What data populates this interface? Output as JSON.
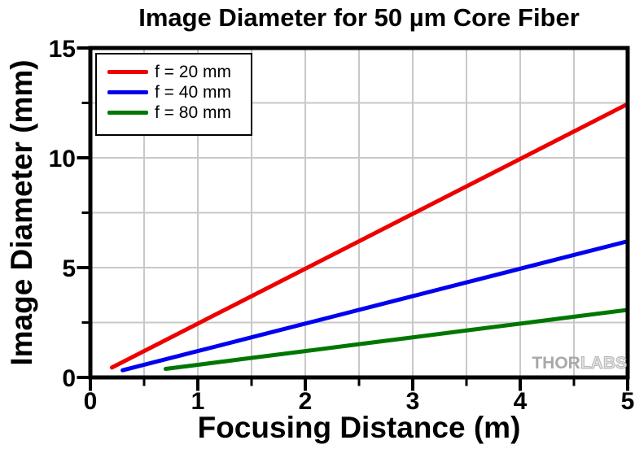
{
  "title": "Image Diameter for 50 µm Core Fiber",
  "watermark": {
    "part1": "THOR",
    "part2": "LABS"
  },
  "chart_data": {
    "type": "line",
    "title": "Image Diameter for 50 µm Core Fiber",
    "xlabel": "Focusing Distance (m)",
    "ylabel": "Image Diameter (mm)",
    "xlim": [
      0,
      5
    ],
    "ylim": [
      0,
      15
    ],
    "x_major_ticks": [
      0,
      1,
      2,
      3,
      4,
      5
    ],
    "x_minor_ticks": [
      0.5,
      1.5,
      2.5,
      3.5,
      4.5
    ],
    "y_major_ticks": [
      0,
      5,
      10,
      15
    ],
    "y_minor_ticks": [
      2.5,
      7.5,
      12.5
    ],
    "grid": {
      "x_lines": [
        0.5,
        1,
        1.5,
        2,
        2.5,
        3,
        3.5,
        4,
        4.5
      ],
      "y_lines": [
        2.5,
        5,
        7.5,
        10,
        12.5
      ],
      "color": "#c8c8c8"
    },
    "axis_color": "#000000",
    "background_color": "#ffffff",
    "legend_position": "top-left",
    "series": [
      {
        "name": "f = 20 mm",
        "color": "#ee0000",
        "x": [
          0.2,
          0.5,
          1,
          1.5,
          2,
          2.5,
          3,
          3.5,
          4,
          4.5,
          5
        ],
        "y": [
          0.45,
          1.2,
          2.45,
          3.7,
          4.95,
          6.2,
          7.45,
          8.7,
          9.95,
          11.2,
          12.45
        ]
      },
      {
        "name": "f = 40 mm",
        "color": "#0000ee",
        "x": [
          0.3,
          0.5,
          1,
          1.5,
          2,
          2.5,
          3,
          3.5,
          4,
          4.5,
          5
        ],
        "y": [
          0.325,
          0.575,
          1.2,
          1.825,
          2.45,
          3.075,
          3.7,
          4.325,
          4.95,
          5.575,
          6.2
        ]
      },
      {
        "name": "f = 80 mm",
        "color": "#007700",
        "x": [
          0.7,
          1,
          1.5,
          2,
          2.5,
          3,
          3.5,
          4,
          4.5,
          5
        ],
        "y": [
          0.3875,
          0.575,
          0.8875,
          1.2,
          1.5125,
          1.825,
          2.1375,
          2.45,
          2.7625,
          3.075
        ]
      }
    ]
  }
}
